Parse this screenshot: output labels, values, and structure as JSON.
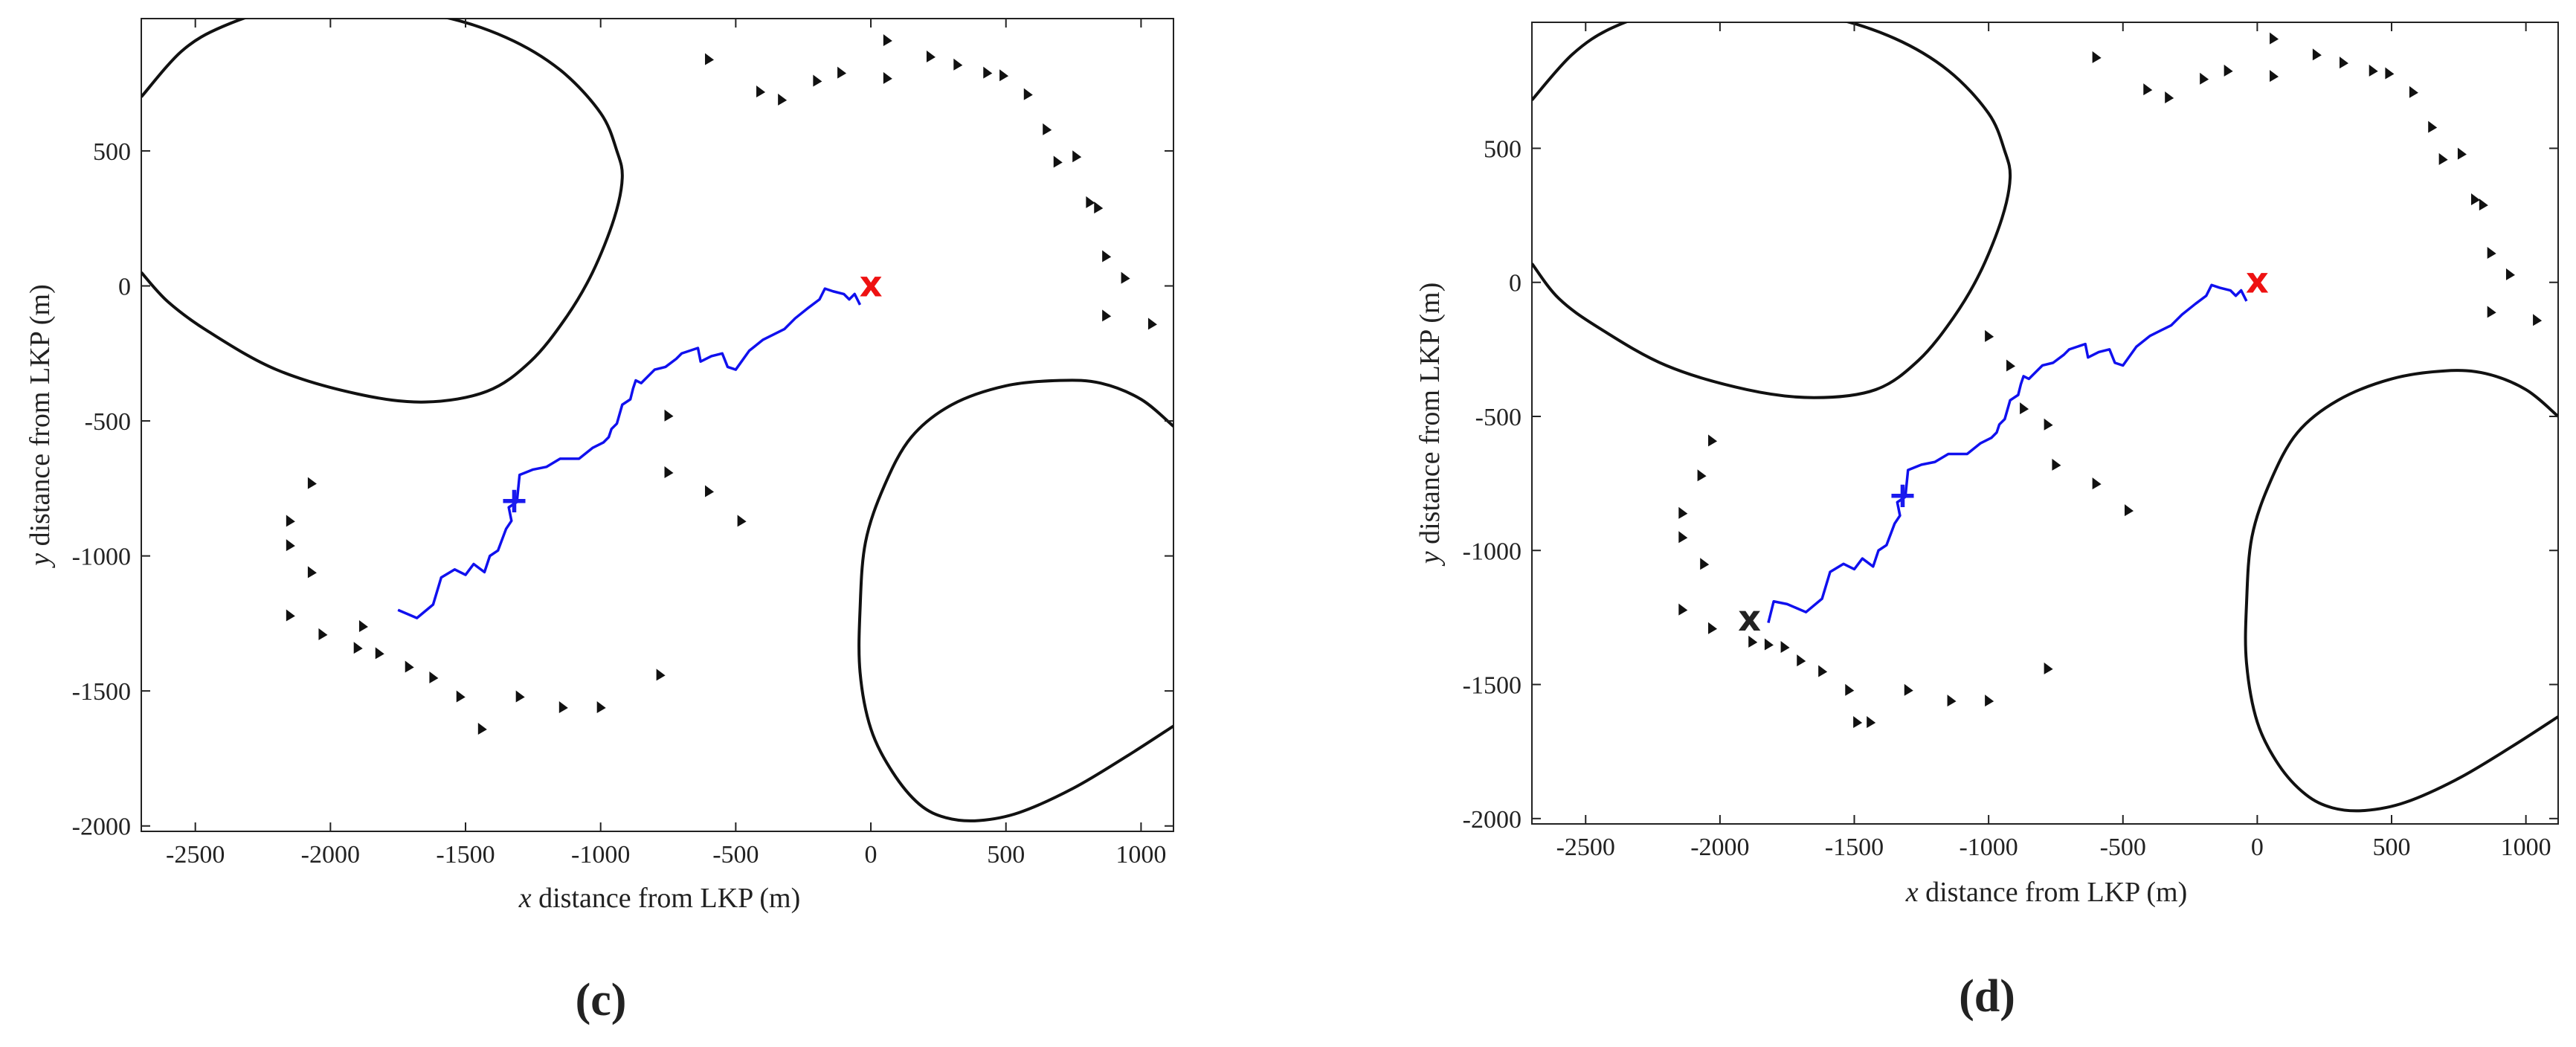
{
  "chart_data": [
    {
      "type": "scatter",
      "panel_label": "(c)",
      "xlabel": {
        "var": "x",
        "rest": " distance from LKP (m)"
      },
      "ylabel": {
        "var": "y",
        "rest": " distance from LKP (m)"
      },
      "xlim": [
        -2700,
        1120
      ],
      "ylim": [
        -2020,
        990
      ],
      "xticks": [
        -2500,
        -2000,
        -1500,
        -1000,
        -500,
        0,
        500,
        1000
      ],
      "yticks": [
        -2000,
        -1500,
        -1000,
        -500,
        0,
        500
      ],
      "colors": {
        "path": "#1010ee",
        "lkp_marker": "#ee1111",
        "current_marker": "#1a1aee",
        "boundary": "#111111",
        "triangles": "#111111"
      },
      "boundaries": [
        [
          [
            -2700,
            700
          ],
          [
            -2550,
            870
          ],
          [
            -2400,
            960
          ],
          [
            -2200,
            1020
          ],
          [
            -1900,
            1030
          ],
          [
            -1600,
            1000
          ],
          [
            -1350,
            920
          ],
          [
            -1150,
            800
          ],
          [
            -1000,
            640
          ],
          [
            -940,
            500
          ],
          [
            -920,
            400
          ],
          [
            -950,
            250
          ],
          [
            -1030,
            50
          ],
          [
            -1130,
            -120
          ],
          [
            -1260,
            -280
          ],
          [
            -1420,
            -390
          ],
          [
            -1650,
            -430
          ],
          [
            -1900,
            -400
          ],
          [
            -2200,
            -310
          ],
          [
            -2450,
            -170
          ],
          [
            -2600,
            -60
          ],
          [
            -2700,
            50
          ]
        ],
        [
          [
            1120,
            -520
          ],
          [
            1000,
            -420
          ],
          [
            850,
            -360
          ],
          [
            700,
            -350
          ],
          [
            500,
            -370
          ],
          [
            300,
            -440
          ],
          [
            150,
            -560
          ],
          [
            50,
            -740
          ],
          [
            -20,
            -950
          ],
          [
            -40,
            -1200
          ],
          [
            -40,
            -1430
          ],
          [
            0,
            -1640
          ],
          [
            80,
            -1800
          ],
          [
            180,
            -1920
          ],
          [
            280,
            -1970
          ],
          [
            400,
            -1980
          ],
          [
            550,
            -1950
          ],
          [
            750,
            -1860
          ],
          [
            950,
            -1740
          ],
          [
            1120,
            -1630
          ]
        ]
      ],
      "path": [
        [
          -1750,
          -1200
        ],
        [
          -1680,
          -1230
        ],
        [
          -1620,
          -1180
        ],
        [
          -1590,
          -1080
        ],
        [
          -1540,
          -1050
        ],
        [
          -1500,
          -1070
        ],
        [
          -1470,
          -1030
        ],
        [
          -1430,
          -1060
        ],
        [
          -1410,
          -1000
        ],
        [
          -1380,
          -980
        ],
        [
          -1350,
          -900
        ],
        [
          -1330,
          -870
        ],
        [
          -1340,
          -820
        ],
        [
          -1310,
          -800
        ],
        [
          -1300,
          -700
        ],
        [
          -1250,
          -680
        ],
        [
          -1200,
          -670
        ],
        [
          -1150,
          -640
        ],
        [
          -1080,
          -640
        ],
        [
          -1030,
          -600
        ],
        [
          -990,
          -580
        ],
        [
          -970,
          -560
        ],
        [
          -960,
          -530
        ],
        [
          -940,
          -510
        ],
        [
          -920,
          -440
        ],
        [
          -890,
          -420
        ],
        [
          -880,
          -380
        ],
        [
          -870,
          -350
        ],
        [
          -850,
          -360
        ],
        [
          -800,
          -310
        ],
        [
          -760,
          -300
        ],
        [
          -720,
          -270
        ],
        [
          -700,
          -250
        ],
        [
          -640,
          -230
        ],
        [
          -630,
          -280
        ],
        [
          -590,
          -260
        ],
        [
          -550,
          -250
        ],
        [
          -530,
          -300
        ],
        [
          -500,
          -310
        ],
        [
          -450,
          -240
        ],
        [
          -400,
          -200
        ],
        [
          -360,
          -180
        ],
        [
          -320,
          -160
        ],
        [
          -280,
          -120
        ],
        [
          -230,
          -80
        ],
        [
          -190,
          -50
        ],
        [
          -170,
          -10
        ],
        [
          -140,
          -20
        ],
        [
          -100,
          -30
        ],
        [
          -80,
          -50
        ],
        [
          -60,
          -30
        ],
        [
          -40,
          -70
        ]
      ],
      "lkp_marker": {
        "x": 0,
        "y": 0,
        "label": "x"
      },
      "current_marker": {
        "x": -1320,
        "y": -800,
        "label": "+"
      },
      "extra_marker": null,
      "triangles": [
        [
          -600,
          840
        ],
        [
          -410,
          720
        ],
        [
          -330,
          690
        ],
        [
          -200,
          760
        ],
        [
          -110,
          790
        ],
        [
          60,
          910
        ],
        [
          60,
          770
        ],
        [
          220,
          850
        ],
        [
          320,
          820
        ],
        [
          430,
          790
        ],
        [
          490,
          780
        ],
        [
          580,
          710
        ],
        [
          650,
          580
        ],
        [
          690,
          460
        ],
        [
          760,
          480
        ],
        [
          810,
          310
        ],
        [
          840,
          290
        ],
        [
          870,
          110
        ],
        [
          940,
          30
        ],
        [
          870,
          -110
        ],
        [
          1040,
          -140
        ],
        [
          -750,
          -480
        ],
        [
          -750,
          -690
        ],
        [
          -600,
          -760
        ],
        [
          -480,
          -870
        ],
        [
          -2070,
          -730
        ],
        [
          -2150,
          -870
        ],
        [
          -2150,
          -960
        ],
        [
          -2070,
          -1060
        ],
        [
          -2150,
          -1220
        ],
        [
          -2030,
          -1290
        ],
        [
          -1880,
          -1260
        ],
        [
          -1900,
          -1340
        ],
        [
          -1820,
          -1360
        ],
        [
          -1710,
          -1410
        ],
        [
          -1620,
          -1450
        ],
        [
          -1520,
          -1520
        ],
        [
          -1440,
          -1640
        ],
        [
          -1300,
          -1520
        ],
        [
          -1140,
          -1560
        ],
        [
          -1000,
          -1560
        ],
        [
          -780,
          -1440
        ]
      ]
    },
    {
      "type": "scatter",
      "panel_label": "(d)",
      "xlabel": {
        "var": "x",
        "rest": " distance from LKP (m)"
      },
      "ylabel": {
        "var": "y",
        "rest": " distance from LKP (m)"
      },
      "xlim": [
        -2700,
        1120
      ],
      "ylim": [
        -2020,
        970
      ],
      "xticks": [
        -2500,
        -2000,
        -1500,
        -1000,
        -500,
        0,
        500,
        1000
      ],
      "yticks": [
        -2000,
        -1500,
        -1000,
        -500,
        0,
        500
      ],
      "colors": {
        "path": "#1010ee",
        "lkp_marker": "#ee1111",
        "current_marker": "#1a1aee",
        "extra_marker": "#222222",
        "boundary": "#111111",
        "triangles": "#111111"
      },
      "boundaries": [
        [
          [
            -2700,
            680
          ],
          [
            -2550,
            850
          ],
          [
            -2400,
            950
          ],
          [
            -2200,
            1010
          ],
          [
            -1900,
            1020
          ],
          [
            -1600,
            990
          ],
          [
            -1350,
            910
          ],
          [
            -1150,
            790
          ],
          [
            -1000,
            630
          ],
          [
            -940,
            490
          ],
          [
            -920,
            390
          ],
          [
            -950,
            240
          ],
          [
            -1030,
            40
          ],
          [
            -1130,
            -130
          ],
          [
            -1260,
            -290
          ],
          [
            -1420,
            -400
          ],
          [
            -1650,
            -430
          ],
          [
            -1900,
            -400
          ],
          [
            -2200,
            -310
          ],
          [
            -2450,
            -170
          ],
          [
            -2600,
            -60
          ],
          [
            -2700,
            70
          ]
        ],
        [
          [
            1120,
            -500
          ],
          [
            1000,
            -400
          ],
          [
            850,
            -340
          ],
          [
            700,
            -330
          ],
          [
            500,
            -360
          ],
          [
            300,
            -440
          ],
          [
            150,
            -560
          ],
          [
            50,
            -740
          ],
          [
            -20,
            -950
          ],
          [
            -40,
            -1200
          ],
          [
            -40,
            -1420
          ],
          [
            0,
            -1640
          ],
          [
            80,
            -1800
          ],
          [
            180,
            -1910
          ],
          [
            280,
            -1960
          ],
          [
            400,
            -1970
          ],
          [
            550,
            -1940
          ],
          [
            750,
            -1850
          ],
          [
            950,
            -1730
          ],
          [
            1120,
            -1620
          ]
        ]
      ],
      "path": [
        [
          -1820,
          -1270
        ],
        [
          -1800,
          -1190
        ],
        [
          -1750,
          -1200
        ],
        [
          -1680,
          -1230
        ],
        [
          -1620,
          -1180
        ],
        [
          -1590,
          -1080
        ],
        [
          -1540,
          -1050
        ],
        [
          -1500,
          -1070
        ],
        [
          -1470,
          -1030
        ],
        [
          -1430,
          -1060
        ],
        [
          -1410,
          -1000
        ],
        [
          -1380,
          -980
        ],
        [
          -1350,
          -900
        ],
        [
          -1330,
          -870
        ],
        [
          -1340,
          -820
        ],
        [
          -1310,
          -800
        ],
        [
          -1300,
          -700
        ],
        [
          -1250,
          -680
        ],
        [
          -1200,
          -670
        ],
        [
          -1150,
          -640
        ],
        [
          -1080,
          -640
        ],
        [
          -1030,
          -600
        ],
        [
          -990,
          -580
        ],
        [
          -970,
          -560
        ],
        [
          -960,
          -530
        ],
        [
          -940,
          -510
        ],
        [
          -920,
          -440
        ],
        [
          -890,
          -420
        ],
        [
          -880,
          -380
        ],
        [
          -870,
          -350
        ],
        [
          -850,
          -360
        ],
        [
          -800,
          -310
        ],
        [
          -760,
          -300
        ],
        [
          -720,
          -270
        ],
        [
          -700,
          -250
        ],
        [
          -640,
          -230
        ],
        [
          -630,
          -280
        ],
        [
          -590,
          -260
        ],
        [
          -550,
          -250
        ],
        [
          -530,
          -300
        ],
        [
          -500,
          -310
        ],
        [
          -450,
          -240
        ],
        [
          -400,
          -200
        ],
        [
          -360,
          -180
        ],
        [
          -320,
          -160
        ],
        [
          -280,
          -120
        ],
        [
          -230,
          -80
        ],
        [
          -190,
          -50
        ],
        [
          -170,
          -10
        ],
        [
          -140,
          -20
        ],
        [
          -100,
          -30
        ],
        [
          -80,
          -50
        ],
        [
          -60,
          -30
        ],
        [
          -40,
          -70
        ]
      ],
      "lkp_marker": {
        "x": 0,
        "y": 0,
        "label": "x"
      },
      "current_marker": {
        "x": -1320,
        "y": -800,
        "label": "+"
      },
      "extra_marker": {
        "x": -1890,
        "y": -1260,
        "label": "x"
      },
      "triangles": [
        [
          -600,
          840
        ],
        [
          -410,
          720
        ],
        [
          -330,
          690
        ],
        [
          -200,
          760
        ],
        [
          -110,
          790
        ],
        [
          60,
          910
        ],
        [
          60,
          770
        ],
        [
          220,
          850
        ],
        [
          320,
          820
        ],
        [
          430,
          790
        ],
        [
          490,
          780
        ],
        [
          580,
          710
        ],
        [
          650,
          580
        ],
        [
          690,
          460
        ],
        [
          760,
          480
        ],
        [
          810,
          310
        ],
        [
          840,
          290
        ],
        [
          870,
          110
        ],
        [
          940,
          30
        ],
        [
          870,
          -110
        ],
        [
          1040,
          -140
        ],
        [
          -1000,
          -200
        ],
        [
          -920,
          -310
        ],
        [
          -870,
          -470
        ],
        [
          -780,
          -530
        ],
        [
          -750,
          -680
        ],
        [
          -600,
          -750
        ],
        [
          -480,
          -850
        ],
        [
          -2030,
          -590
        ],
        [
          -2070,
          -720
        ],
        [
          -2140,
          -860
        ],
        [
          -2140,
          -950
        ],
        [
          -2060,
          -1050
        ],
        [
          -2140,
          -1220
        ],
        [
          -2030,
          -1290
        ],
        [
          -1880,
          -1340
        ],
        [
          -1820,
          -1350
        ],
        [
          -1760,
          -1360
        ],
        [
          -1700,
          -1410
        ],
        [
          -1620,
          -1450
        ],
        [
          -1520,
          -1520
        ],
        [
          -1490,
          -1640
        ],
        [
          -1440,
          -1640
        ],
        [
          -1300,
          -1520
        ],
        [
          -1140,
          -1560
        ],
        [
          -1000,
          -1560
        ],
        [
          -780,
          -1440
        ]
      ]
    }
  ]
}
